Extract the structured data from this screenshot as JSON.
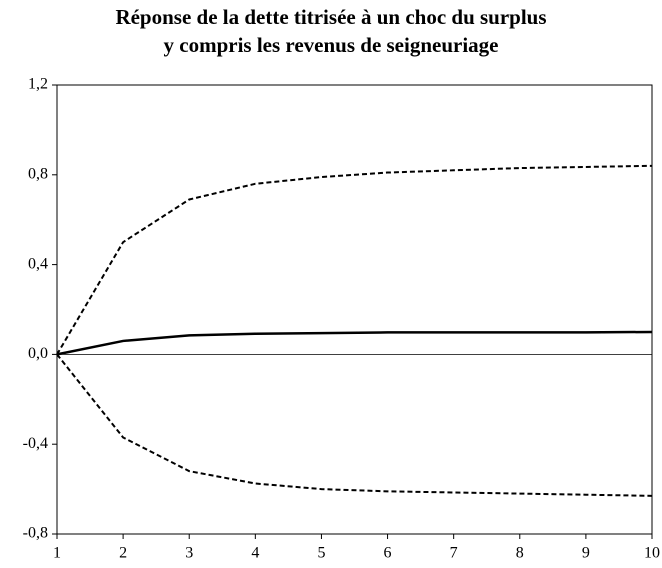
{
  "chart_data": {
    "type": "line",
    "title": [
      "Réponse de la dette titrisée à un choc du surplus",
      "y compris les revenus de seigneuriage"
    ],
    "x": [
      1,
      2,
      3,
      4,
      5,
      6,
      7,
      8,
      9,
      10
    ],
    "series": [
      {
        "color": "#000000",
        "dashed": false,
        "values": [
          0,
          0.06,
          0.085,
          0.092,
          0.095,
          0.098,
          0.098,
          0.098,
          0.098,
          0.1
        ]
      },
      {
        "color": "#000000",
        "dashed": true,
        "values": [
          0,
          0.5,
          0.69,
          0.76,
          0.79,
          0.81,
          0.82,
          0.83,
          0.835,
          0.84
        ]
      },
      {
        "color": "#000000",
        "dashed": true,
        "values": [
          0,
          -0.37,
          -0.52,
          -0.575,
          -0.6,
          -0.61,
          -0.615,
          -0.62,
          -0.625,
          -0.63
        ]
      }
    ],
    "xlim": [
      1,
      10
    ],
    "xticks": [
      1,
      2,
      3,
      4,
      5,
      6,
      7,
      8,
      9,
      10
    ],
    "ylim": [
      -0.8,
      1.2
    ],
    "yticks": [
      {
        "value": -0.8,
        "label": "-0,8"
      },
      {
        "value": -0.4,
        "label": "-0,4"
      },
      {
        "value": 0,
        "label": "0,0"
      },
      {
        "value": 0.4,
        "label": "0,4"
      },
      {
        "value": 0.8,
        "label": "0,8"
      },
      {
        "value": 1.2,
        "label": "1,2"
      }
    ],
    "zero_line": true,
    "grid": false
  }
}
